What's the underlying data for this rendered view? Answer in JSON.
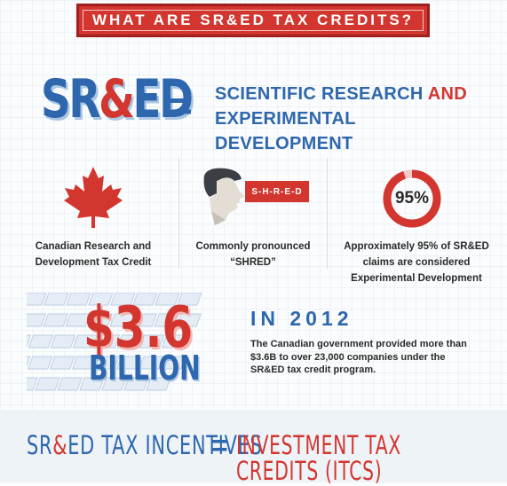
{
  "header": {
    "title": "WHAT ARE SR&ED TAX CREDITS?"
  },
  "definition": {
    "logo_pre": "SR",
    "logo_amp": "&",
    "logo_post": "ED",
    "equals": "=",
    "line1_a": "SCIENTIFIC RESEARCH ",
    "line1_b": "AND",
    "line2": "EXPERIMENTAL DEVELOPMENT"
  },
  "columns": [
    {
      "icon": "maple-leaf-icon",
      "line1": "Canadian Research and",
      "line2": "Development Tax Credit"
    },
    {
      "icon": "person-speaking-icon",
      "tag": "S-H-R-E-D",
      "line1": "Commonly pronounced",
      "line2": "“SHRED”"
    },
    {
      "icon": "percent-ring-icon",
      "percent_label": "95%",
      "percent_value": 0.95,
      "line1": "Approximately 95% of SR&ED",
      "line2": "claims are considered",
      "line3": "Experimental Development"
    }
  ],
  "funding": {
    "amount": "$3.6",
    "unit": "BILLION",
    "year_heading": "IN 2012",
    "body1": "The Canadian government provided more than",
    "body2": "$3.6B to over 23,000 companies under the",
    "body3": "SR&ED tax credit program."
  },
  "footer": {
    "left_pre": "SR",
    "left_amp": "&",
    "left_post": "ED TAX INCENTIVES",
    "equals": "=",
    "right": "INVESTMENT TAX CREDITS (ITCS)"
  },
  "colors": {
    "red": "#d2362f",
    "blue": "#2e67ad",
    "dark": "#2b2b2b"
  }
}
